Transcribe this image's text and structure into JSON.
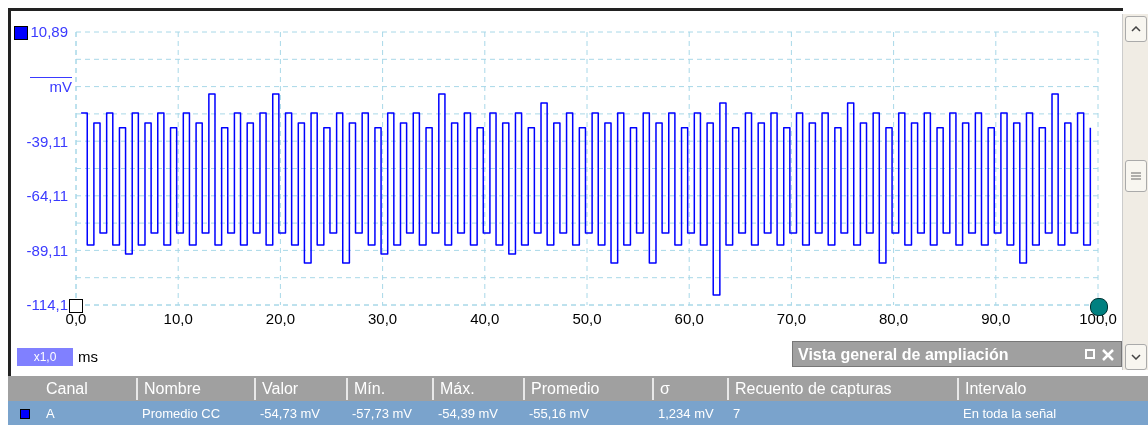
{
  "chart_data": {
    "type": "step",
    "xlabel": "ms",
    "ylabel": "mV",
    "x": [
      0.5,
      1.1,
      1.75,
      2.35,
      3,
      3.6,
      4.25,
      4.85,
      5.5,
      6.1,
      6.75,
      7.35,
      8,
      8.6,
      9.25,
      9.85,
      10.5,
      11.1,
      11.75,
      12.35,
      13,
      13.6,
      14.25,
      14.85,
      15.5,
      16.1,
      16.75,
      17.35,
      18,
      18.6,
      19.25,
      19.85,
      20.5,
      21.1,
      21.75,
      22.35,
      23,
      23.6,
      24.25,
      24.85,
      25.5,
      26.1,
      26.75,
      27.35,
      28,
      28.6,
      29.25,
      29.85,
      30.5,
      31.1,
      31.75,
      32.35,
      33,
      33.6,
      34.25,
      34.85,
      35.5,
      36.1,
      36.75,
      37.35,
      38,
      38.6,
      39.25,
      39.85,
      40.5,
      41.1,
      41.75,
      42.35,
      43,
      43.6,
      44.25,
      44.85,
      45.5,
      46.1,
      46.75,
      47.35,
      48,
      48.6,
      49.25,
      49.85,
      50.5,
      51.1,
      51.75,
      52.35,
      53,
      53.6,
      54.25,
      54.85,
      55.5,
      56.1,
      56.75,
      57.35,
      58,
      58.6,
      59.25,
      59.85,
      60.5,
      61.1,
      61.75,
      62.35,
      63,
      63.6,
      64.25,
      64.85,
      65.5,
      66.1,
      66.75,
      67.35,
      68,
      68.6,
      69.25,
      69.85,
      70.5,
      71.1,
      71.75,
      72.35,
      73,
      73.6,
      74.25,
      74.85,
      75.5,
      76.1,
      76.75,
      77.35,
      78,
      78.6,
      79.25,
      79.85,
      80.5,
      81.1,
      81.75,
      82.35,
      83,
      83.6,
      84.25,
      84.85,
      85.5,
      86.1,
      86.75,
      87.35,
      88,
      88.6,
      89.25,
      89.85,
      90.5,
      91.1,
      91.75,
      92.35,
      93,
      93.6,
      94.25,
      94.85,
      95.5,
      96.1,
      96.75,
      97.35,
      98,
      98.6,
      99.25
    ],
    "series": [
      {
        "color": "#0000ff",
        "values": [
          -26.2,
          -86.6,
          -30.8,
          -81.1,
          -26.2,
          -86.6,
          -33,
          -90.8,
          -26.2,
          -86.6,
          -30.8,
          -81.1,
          -26.2,
          -86.6,
          -33,
          -81.1,
          -26.2,
          -86.6,
          -30.8,
          -81.1,
          -17.5,
          -86.6,
          -33,
          -81.1,
          -26.2,
          -86.6,
          -30.8,
          -81.1,
          -26.2,
          -86.6,
          -17.5,
          -81.1,
          -26.2,
          -86.6,
          -30.8,
          -94.9,
          -26.2,
          -86.6,
          -33,
          -81.1,
          -26.2,
          -94.9,
          -30.8,
          -81.1,
          -26.2,
          -86.6,
          -33,
          -90.8,
          -26.2,
          -86.6,
          -30.8,
          -81.1,
          -26.2,
          -86.6,
          -33,
          -81.1,
          -17.5,
          -86.6,
          -30.8,
          -81.1,
          -26.2,
          -86.6,
          -33,
          -81.1,
          -26.2,
          -86.6,
          -30.8,
          -90.8,
          -26.2,
          -86.6,
          -33,
          -81.1,
          -21.6,
          -86.6,
          -30.8,
          -81.1,
          -26.2,
          -86.6,
          -33,
          -81.1,
          -26.2,
          -86.6,
          -30.8,
          -94.9,
          -26.2,
          -86.6,
          -33,
          -81.1,
          -26.2,
          -94.9,
          -30.8,
          -81.1,
          -26.2,
          -86.6,
          -33,
          -81.1,
          -26.2,
          -86.6,
          -30.8,
          -109.5,
          -21.6,
          -86.6,
          -33,
          -81.1,
          -26.2,
          -86.6,
          -30.8,
          -81.1,
          -26.2,
          -86.6,
          -33,
          -81.1,
          -26.2,
          -86.6,
          -30.8,
          -81.1,
          -26.2,
          -86.6,
          -33,
          -81.1,
          -21.6,
          -86.6,
          -30.8,
          -81.1,
          -26.2,
          -94.9,
          -33,
          -81.1,
          -26.2,
          -86.6,
          -30.8,
          -81.1,
          -26.2,
          -86.6,
          -33,
          -81.1,
          -26.2,
          -86.6,
          -30.8,
          -81.1,
          -26.2,
          -86.6,
          -33,
          -81.1,
          -26.2,
          -86.6,
          -30.8,
          -94.9,
          -26.2,
          -86.6,
          -33,
          -81.1,
          -17.5,
          -86.6,
          -30.8,
          -81.1,
          -26.2,
          -86.6,
          -33
        ]
      }
    ],
    "xlim": [
      0,
      100
    ],
    "xticks": [
      {
        "value": 0,
        "label": "0,0"
      },
      {
        "value": 10,
        "label": "10,0"
      },
      {
        "value": 20,
        "label": "20,0"
      },
      {
        "value": 30,
        "label": "30,0"
      },
      {
        "value": 40,
        "label": "40,0"
      },
      {
        "value": 50,
        "label": "50,0"
      },
      {
        "value": 60,
        "label": "60,0"
      },
      {
        "value": 70,
        "label": "70,0"
      },
      {
        "value": 80,
        "label": "80,0"
      },
      {
        "value": 90,
        "label": "90,0"
      },
      {
        "value": 100,
        "label": "100,0"
      }
    ],
    "ylim": [
      -114.11,
      10.89
    ],
    "yticks": [
      {
        "value": 10.89,
        "label": "10,89"
      },
      {
        "value": -1.61,
        "label": null
      },
      {
        "value": -14.11,
        "label": null
      },
      {
        "value": -26.61,
        "label": null
      },
      {
        "value": -39.11,
        "label": "-39,11"
      },
      {
        "value": -51.61,
        "label": null
      },
      {
        "value": -64.11,
        "label": "-64,11"
      },
      {
        "value": -76.61,
        "label": null
      },
      {
        "value": -89.11,
        "label": "-89,11"
      },
      {
        "value": -101.61,
        "label": null
      },
      {
        "value": -114.11,
        "label": "-114,1"
      }
    ],
    "grid": true,
    "line_style": "solid",
    "marker": "none",
    "annotations": [
      "x1,0",
      "Vista general de ampliación",
      "Canal",
      "Nombre",
      "Valor",
      "Mín.",
      "Máx.",
      "Promedio",
      "σ",
      "Recuento de capturas",
      "Intervalo",
      "A",
      "Promedio CC",
      "-54,73 mV",
      "-57,73 mV",
      "-54,39 mV",
      "-55,16 mV",
      "1,234 mV",
      "7",
      "En toda la señal"
    ]
  }
}
